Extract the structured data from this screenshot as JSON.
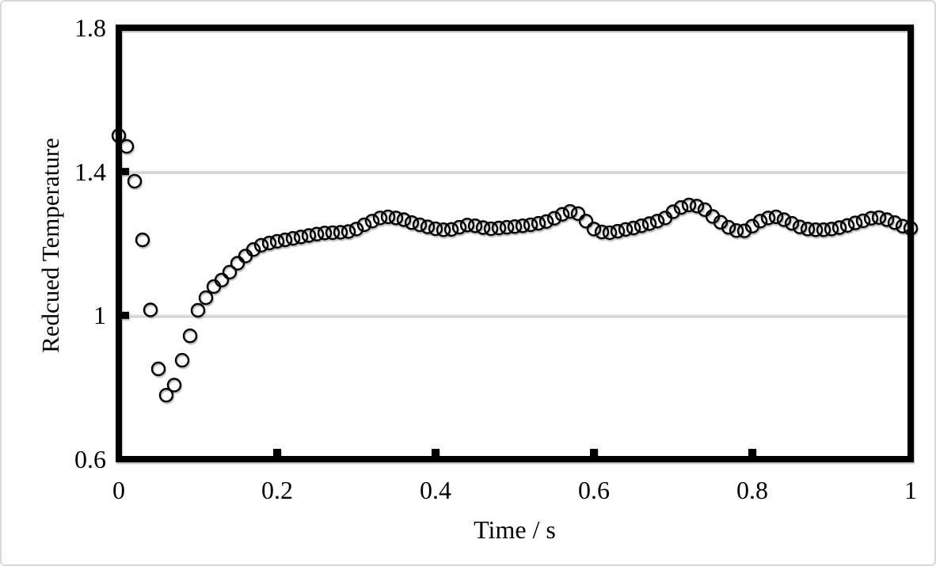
{
  "figure": {
    "background": "#ffffff",
    "outer_border_color": "#d9d9d9",
    "frame_color": "#000000",
    "gridline_color": "#d9d9d9",
    "marker_color": "#000000"
  },
  "chart_data": {
    "type": "scatter",
    "title": "",
    "xlabel": "Time / s",
    "ylabel": "Redcued Temperature",
    "xlim": [
      0,
      1
    ],
    "ylim": [
      0.6,
      1.8
    ],
    "x_ticks": [
      0,
      0.2,
      0.4,
      0.6,
      0.8,
      1
    ],
    "x_tick_labels": [
      "0",
      "0.2",
      "0.4",
      "0.6",
      "0.8",
      "1"
    ],
    "y_ticks": [
      0.6,
      1.0,
      1.4,
      1.8
    ],
    "y_tick_labels": [
      "0.6",
      "1",
      "1.4",
      "1.8"
    ],
    "grid_y_values": [
      1.0,
      1.4
    ],
    "grid": "horizontal-only",
    "legend": "none",
    "marker": "open-circle",
    "series": [
      {
        "name": "reduced-temperature",
        "x": [
          0,
          0.01,
          0.02,
          0.03,
          0.04,
          0.05,
          0.06,
          0.07,
          0.08,
          0.09,
          0.1,
          0.11,
          0.12,
          0.13,
          0.14,
          0.15,
          0.16,
          0.17,
          0.18,
          0.19,
          0.2,
          0.21,
          0.22,
          0.23,
          0.24,
          0.25,
          0.26,
          0.27,
          0.28,
          0.29,
          0.3,
          0.31,
          0.32,
          0.33,
          0.34,
          0.35,
          0.36,
          0.37,
          0.38,
          0.39,
          0.4,
          0.41,
          0.42,
          0.43,
          0.44,
          0.45,
          0.46,
          0.47,
          0.48,
          0.49,
          0.5,
          0.51,
          0.52,
          0.53,
          0.54,
          0.55,
          0.56,
          0.57,
          0.58,
          0.59,
          0.6,
          0.61,
          0.62,
          0.63,
          0.64,
          0.65,
          0.66,
          0.67,
          0.68,
          0.69,
          0.7,
          0.71,
          0.72,
          0.73,
          0.74,
          0.75,
          0.76,
          0.77,
          0.78,
          0.79,
          0.8,
          0.81,
          0.82,
          0.83,
          0.84,
          0.85,
          0.86,
          0.87,
          0.88,
          0.89,
          0.9,
          0.91,
          0.92,
          0.93,
          0.94,
          0.95,
          0.96,
          0.97,
          0.98,
          0.99,
          1
        ],
        "y": [
          1.5,
          1.47,
          1.373,
          1.21,
          1.015,
          0.851,
          0.778,
          0.806,
          0.875,
          0.943,
          1.014,
          1.049,
          1.08,
          1.098,
          1.12,
          1.145,
          1.165,
          1.183,
          1.195,
          1.201,
          1.206,
          1.21,
          1.214,
          1.218,
          1.222,
          1.226,
          1.229,
          1.23,
          1.231,
          1.233,
          1.24,
          1.252,
          1.262,
          1.271,
          1.274,
          1.271,
          1.266,
          1.258,
          1.252,
          1.246,
          1.241,
          1.238,
          1.239,
          1.245,
          1.251,
          1.249,
          1.244,
          1.241,
          1.243,
          1.245,
          1.247,
          1.249,
          1.252,
          1.256,
          1.261,
          1.27,
          1.281,
          1.289,
          1.283,
          1.262,
          1.24,
          1.232,
          1.23,
          1.234,
          1.239,
          1.243,
          1.249,
          1.255,
          1.262,
          1.271,
          1.288,
          1.3,
          1.307,
          1.304,
          1.294,
          1.275,
          1.259,
          1.245,
          1.236,
          1.235,
          1.248,
          1.262,
          1.271,
          1.274,
          1.266,
          1.256,
          1.246,
          1.24,
          1.238,
          1.238,
          1.24,
          1.244,
          1.25,
          1.257,
          1.263,
          1.27,
          1.272,
          1.266,
          1.258,
          1.248,
          1.242
        ]
      }
    ]
  }
}
